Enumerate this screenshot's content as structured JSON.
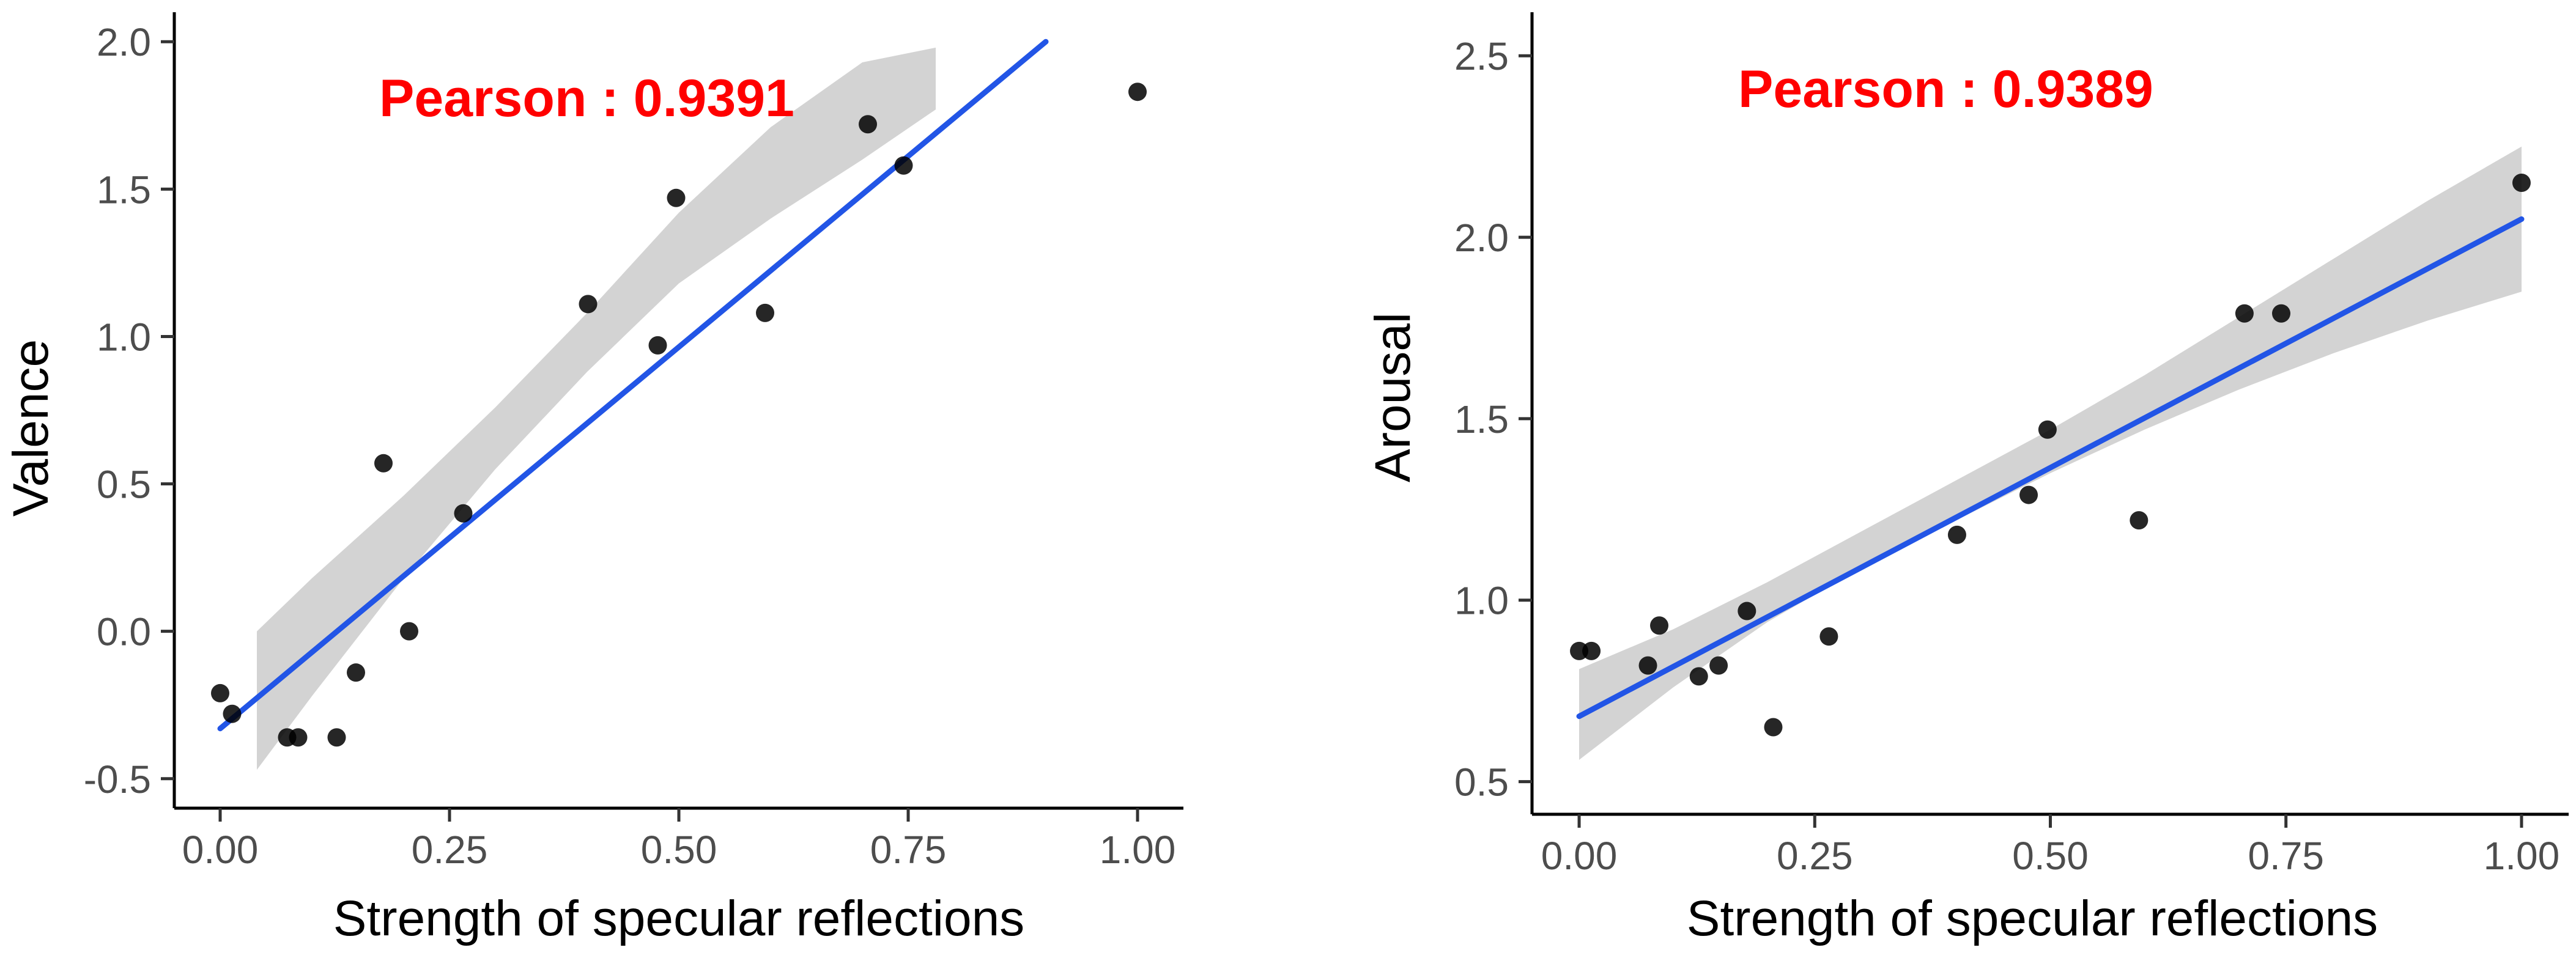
{
  "chart_data": [
    {
      "type": "scatter",
      "title": "",
      "xlabel": "Strength of specular reflections",
      "ylabel": "Valence",
      "annotation": "Pearson :  0.9391",
      "xlim": [
        -0.05,
        1.05
      ],
      "ylim": [
        -0.6,
        2.1
      ],
      "xticks": [
        0.0,
        0.25,
        0.5,
        0.75,
        1.0
      ],
      "xtick_labels": [
        "0.00",
        "0.25",
        "0.50",
        "0.75",
        "1.00"
      ],
      "yticks": [
        -0.5,
        0.0,
        0.5,
        1.0,
        1.5,
        2.0
      ],
      "ytick_labels": [
        "-0.5",
        "0.0",
        "0.5",
        "1.0",
        "1.5",
        "2.0"
      ],
      "points": [
        {
          "x": 0.0,
          "y": -0.21
        },
        {
          "x": 0.013,
          "y": -0.28
        },
        {
          "x": 0.073,
          "y": -0.36
        },
        {
          "x": 0.085,
          "y": -0.36
        },
        {
          "x": 0.127,
          "y": -0.36
        },
        {
          "x": 0.148,
          "y": -0.14
        },
        {
          "x": 0.178,
          "y": 0.57
        },
        {
          "x": 0.206,
          "y": 0.0
        },
        {
          "x": 0.265,
          "y": 0.4
        },
        {
          "x": 0.401,
          "y": 1.11
        },
        {
          "x": 0.477,
          "y": 0.97
        },
        {
          "x": 0.497,
          "y": 1.47
        },
        {
          "x": 0.594,
          "y": 1.08
        },
        {
          "x": 0.706,
          "y": 1.72
        },
        {
          "x": 0.745,
          "y": 1.58
        },
        {
          "x": 1.0,
          "y": 1.83
        }
      ],
      "fit": {
        "x0": 0.0,
        "y0": -0.33,
        "x1": 0.9,
        "y1": 2.0
      },
      "band": [
        {
          "x": 0.04,
          "lo": -0.47,
          "hi": 0.0
        },
        {
          "x": 0.1,
          "lo": -0.22,
          "hi": 0.18
        },
        {
          "x": 0.2,
          "lo": 0.18,
          "hi": 0.46
        },
        {
          "x": 0.3,
          "lo": 0.55,
          "hi": 0.76
        },
        {
          "x": 0.4,
          "lo": 0.88,
          "hi": 1.08
        },
        {
          "x": 0.5,
          "lo": 1.18,
          "hi": 1.42
        },
        {
          "x": 0.6,
          "lo": 1.4,
          "hi": 1.71
        },
        {
          "x": 0.7,
          "lo": 1.6,
          "hi": 1.93
        },
        {
          "x": 0.78,
          "lo": 1.77,
          "hi": 1.98
        }
      ],
      "colors": {
        "point": "#000000",
        "line": "#2255e6",
        "band": "#d3d3d3",
        "annotation": "#ff0000"
      }
    },
    {
      "type": "scatter",
      "title": "",
      "xlabel": "Strength of specular reflections",
      "ylabel": "Arousal",
      "annotation": "Pearson :  0.9389",
      "xlim": [
        -0.05,
        1.05
      ],
      "ylim": [
        0.41,
        2.62
      ],
      "xticks": [
        0.0,
        0.25,
        0.5,
        0.75,
        1.0
      ],
      "xtick_labels": [
        "0.00",
        "0.25",
        "0.50",
        "0.75",
        "1.00"
      ],
      "yticks": [
        0.5,
        1.0,
        1.5,
        2.0,
        2.5
      ],
      "ytick_labels": [
        "0.5",
        "1.0",
        "1.5",
        "2.0",
        "2.5"
      ],
      "points": [
        {
          "x": 0.0,
          "y": 0.86
        },
        {
          "x": 0.013,
          "y": 0.86
        },
        {
          "x": 0.073,
          "y": 0.82
        },
        {
          "x": 0.085,
          "y": 0.93
        },
        {
          "x": 0.127,
          "y": 0.79
        },
        {
          "x": 0.148,
          "y": 0.82
        },
        {
          "x": 0.178,
          "y": 0.97
        },
        {
          "x": 0.206,
          "y": 0.65
        },
        {
          "x": 0.265,
          "y": 0.9
        },
        {
          "x": 0.401,
          "y": 1.18
        },
        {
          "x": 0.477,
          "y": 1.29
        },
        {
          "x": 0.497,
          "y": 1.47
        },
        {
          "x": 0.594,
          "y": 1.22
        },
        {
          "x": 0.706,
          "y": 1.79
        },
        {
          "x": 0.745,
          "y": 1.79
        },
        {
          "x": 1.0,
          "y": 2.15
        }
      ],
      "fit": {
        "x0": 0.0,
        "y0": 0.68,
        "x1": 1.0,
        "y1": 2.05
      },
      "band": [
        {
          "x": 0.0,
          "lo": 0.56,
          "hi": 0.81
        },
        {
          "x": 0.1,
          "lo": 0.76,
          "hi": 0.92
        },
        {
          "x": 0.2,
          "lo": 0.94,
          "hi": 1.05
        },
        {
          "x": 0.3,
          "lo": 1.09,
          "hi": 1.19
        },
        {
          "x": 0.4,
          "lo": 1.22,
          "hi": 1.33
        },
        {
          "x": 0.5,
          "lo": 1.35,
          "hi": 1.47
        },
        {
          "x": 0.6,
          "lo": 1.47,
          "hi": 1.62
        },
        {
          "x": 0.7,
          "lo": 1.58,
          "hi": 1.78
        },
        {
          "x": 0.8,
          "lo": 1.68,
          "hi": 1.94
        },
        {
          "x": 0.9,
          "lo": 1.77,
          "hi": 2.1
        },
        {
          "x": 1.0,
          "lo": 1.85,
          "hi": 2.25
        }
      ],
      "colors": {
        "point": "#000000",
        "line": "#2255e6",
        "band": "#d3d3d3",
        "annotation": "#ff0000"
      }
    }
  ]
}
